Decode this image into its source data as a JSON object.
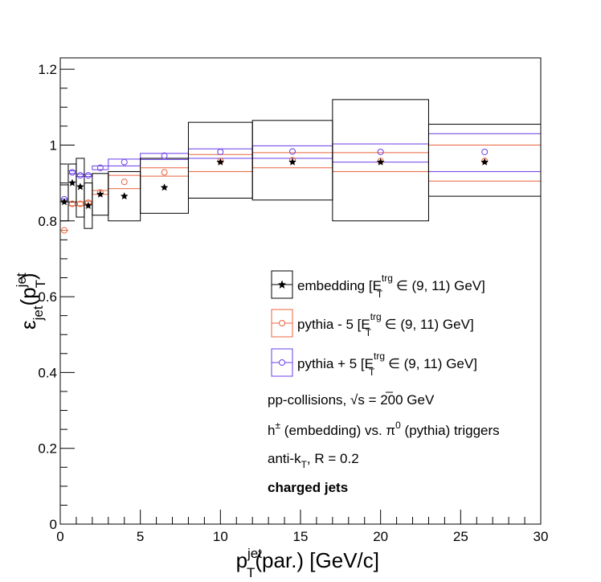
{
  "chart_data": {
    "type": "scatter",
    "title": "",
    "xlabel": {
      "base": "p",
      "sub": "T",
      "sup": "jet",
      "rest": "(par.) [GeV/c]"
    },
    "ylabel": {
      "eps": "ε",
      "sub": "jet",
      "rest1": "(p",
      "sub2": "T",
      "sup2": "jet",
      "rest2": ")"
    },
    "xlim": [
      0,
      30
    ],
    "ylim": [
      0,
      1.23
    ],
    "xticks": [
      0,
      5,
      10,
      15,
      20,
      25,
      30
    ],
    "xtick_labels": [
      "0",
      "5",
      "10",
      "15",
      "20",
      "25",
      "30"
    ],
    "yticks": [
      0,
      0.2,
      0.4,
      0.6,
      0.8,
      1,
      1.2
    ],
    "ytick_labels": [
      "0",
      "0.2",
      "0.4",
      "0.6",
      "0.8",
      "1",
      "1.2"
    ],
    "grid": false,
    "legend_position": "center-right",
    "series": [
      {
        "name": "embedding",
        "legend": {
          "pre": "embedding [E",
          "sup": "trg",
          "sub": "T",
          "post": " ∈ (9, 11) GeV]"
        },
        "color": "#000000",
        "marker": "star",
        "bins": [
          [
            0,
            0.5
          ],
          [
            0.5,
            1
          ],
          [
            1,
            1.5
          ],
          [
            1.5,
            2
          ],
          [
            2,
            3
          ],
          [
            3,
            5
          ],
          [
            5,
            8
          ],
          [
            8,
            12
          ],
          [
            12,
            17
          ],
          [
            17,
            23
          ],
          [
            23,
            30
          ]
        ],
        "x": [
          0.25,
          0.75,
          1.25,
          1.75,
          2.5,
          4,
          6.5,
          10,
          14.5,
          20,
          26.5
        ],
        "y": [
          0.85,
          0.9,
          0.89,
          0.84,
          0.87,
          0.865,
          0.888,
          0.955,
          0.955,
          0.955,
          0.955
        ],
        "sys_low": [
          0.8,
          0.85,
          0.81,
          0.78,
          0.815,
          0.8,
          0.82,
          0.86,
          0.855,
          0.8,
          0.865
        ],
        "sys_high": [
          0.895,
          0.95,
          0.965,
          0.9,
          0.925,
          0.93,
          0.965,
          1.06,
          1.065,
          1.12,
          1.055
        ]
      },
      {
        "name": "pythia - 5",
        "legend": {
          "pre": "pythia - 5 [E",
          "sup": "trg",
          "sub": "T",
          "post": " ∈ (9, 11) GeV]"
        },
        "color": "#e8643c",
        "marker": "open-circle",
        "bins": [
          [
            0,
            0.5
          ],
          [
            0.5,
            1
          ],
          [
            1,
            1.5
          ],
          [
            1.5,
            2
          ],
          [
            2,
            3
          ],
          [
            3,
            5
          ],
          [
            5,
            8
          ],
          [
            8,
            12
          ],
          [
            12,
            17
          ],
          [
            17,
            23
          ],
          [
            23,
            30
          ]
        ],
        "x": [
          0.25,
          0.75,
          1.25,
          1.75,
          2.5,
          4,
          6.5,
          10,
          14.5,
          20,
          26.5
        ],
        "y": [
          0.775,
          0.845,
          0.845,
          0.848,
          0.875,
          0.903,
          0.928,
          0.958,
          0.96,
          0.958,
          0.958
        ],
        "sys_low": [
          0.775,
          0.84,
          0.84,
          0.845,
          0.87,
          0.885,
          0.918,
          0.93,
          0.94,
          0.93,
          0.905
        ],
        "sys_high": [
          0.775,
          0.85,
          0.85,
          0.852,
          0.88,
          0.92,
          0.94,
          0.975,
          0.98,
          0.98,
          1.0
        ]
      },
      {
        "name": "pythia + 5",
        "legend": {
          "pre": "pythia + 5 [E",
          "sup": "trg",
          "sub": "T",
          "post": " ∈ (9, 11) GeV]"
        },
        "color": "#6a3de8",
        "marker": "open-circle",
        "bins": [
          [
            0,
            0.5
          ],
          [
            0.5,
            1
          ],
          [
            1,
            1.5
          ],
          [
            1.5,
            2
          ],
          [
            2,
            3
          ],
          [
            3,
            5
          ],
          [
            5,
            8
          ],
          [
            8,
            12
          ],
          [
            12,
            17
          ],
          [
            17,
            23
          ],
          [
            23,
            30
          ]
        ],
        "x": [
          0.25,
          0.75,
          1.25,
          1.75,
          2.5,
          4,
          6.5,
          10,
          14.5,
          20,
          26.5
        ],
        "y": [
          0.857,
          0.928,
          0.92,
          0.92,
          0.94,
          0.955,
          0.972,
          0.982,
          0.983,
          0.982,
          0.982
        ],
        "sys_low": [
          0.857,
          0.925,
          0.917,
          0.917,
          0.935,
          0.945,
          0.962,
          0.965,
          0.965,
          0.955,
          0.93
        ],
        "sys_high": [
          0.857,
          0.932,
          0.923,
          0.923,
          0.945,
          0.963,
          0.978,
          0.99,
          0.998,
          1.003,
          1.03
        ]
      }
    ],
    "annotations": {
      "line1_pre": "pp-collisions, ",
      "line1_sqrt": "√",
      "line1_s": "s",
      "line1_post": " = 200 GeV",
      "line2_h": "h",
      "line2_pm": "±",
      "line2_mid": " (embedding) vs. π",
      "line2_zero": "0",
      "line2_post": " (pythia) triggers",
      "line3_pre": "anti-k",
      "line3_sub": "T",
      "line3_post": ", R = 0.2",
      "line4": "charged jets"
    }
  }
}
